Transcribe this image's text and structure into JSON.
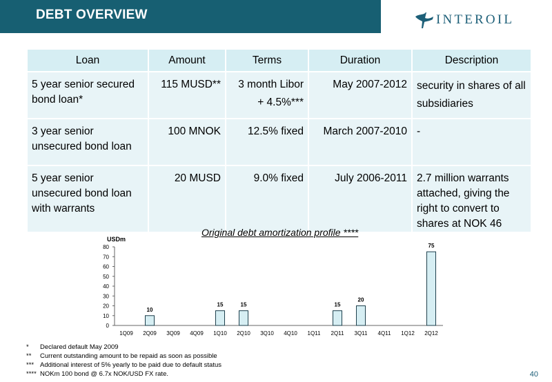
{
  "header": {
    "title": "DEBT OVERVIEW"
  },
  "logo": {
    "text": "INTEROIL"
  },
  "table": {
    "headers": [
      "Loan",
      "Amount",
      "Terms",
      "Duration",
      "Description"
    ],
    "rows": [
      {
        "loan": "5 year senior secured bond loan*",
        "amount": "115 MUSD**",
        "terms_line1": "3 month Libor",
        "terms_line2": "+ 4.5%***",
        "duration": "May 2007-2012",
        "description": "security in shares of all subsidiaries"
      },
      {
        "loan": "3 year senior unsecured bond loan",
        "amount": "100 MNOK",
        "terms_line1": "12.5% fixed",
        "terms_line2": "",
        "duration": "March 2007-2010",
        "description": "-"
      },
      {
        "loan": "5 year senior unsecured bond loan with warrants",
        "amount": "20 MUSD",
        "terms_line1": "9.0% fixed",
        "terms_line2": "",
        "duration": "July 2006-2011",
        "description": "2.7 million warrants attached, giving the right to convert to shares at NOK 46"
      }
    ]
  },
  "chart_data": {
    "type": "bar",
    "title": "Original debt amortization profile ****",
    "ylabel": "USDm",
    "ylim": [
      0,
      80
    ],
    "yticks": [
      0,
      10,
      20,
      30,
      40,
      50,
      60,
      70,
      80
    ],
    "categories": [
      "1Q09",
      "2Q09",
      "3Q09",
      "4Q09",
      "1Q10",
      "2Q10",
      "3Q10",
      "4Q10",
      "1Q11",
      "2Q11",
      "3Q11",
      "4Q11",
      "1Q12",
      "2Q12"
    ],
    "values": [
      0,
      10,
      0,
      0,
      15,
      15,
      0,
      0,
      0,
      15,
      20,
      0,
      0,
      75
    ],
    "bar_color": "#d6eef3",
    "bar_stroke": "#1d3f4c"
  },
  "footnotes": [
    {
      "mark": "*",
      "text": "Declared default May 2009"
    },
    {
      "mark": "**",
      "text": "Current outstanding amount to be repaid as soon as possible"
    },
    {
      "mark": "***",
      "text": "Additional interest of 5% yearly to be paid due to default status"
    },
    {
      "mark": "****",
      "text": "NOKm 100 bond @ 6.7x NOK/USD FX rate."
    }
  ],
  "page": {
    "number": "40"
  }
}
